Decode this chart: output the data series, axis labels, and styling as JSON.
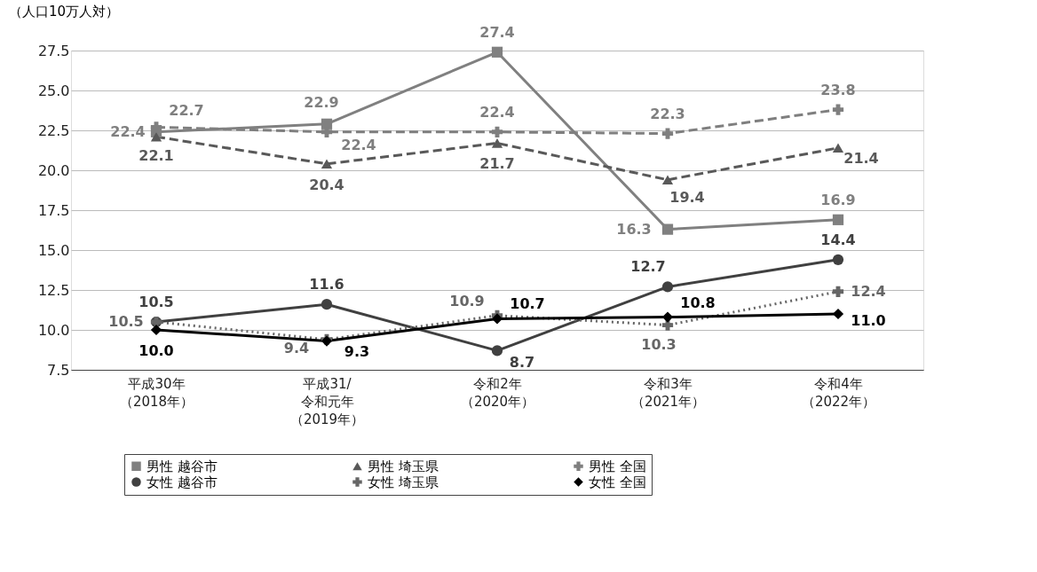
{
  "chart_data": {
    "type": "line",
    "ylabel": "（人口10万人対）",
    "categories": [
      "平成30年（2018年）",
      "平成31/令和元年（2019年）",
      "令和2年（2020年）",
      "令和3年（2021年）",
      "令和4年（2022年）"
    ],
    "series": [
      {
        "name": "男性 越谷市",
        "color": "#808080",
        "marker": "square",
        "line_style": "solid",
        "values": [
          22.4,
          22.9,
          27.4,
          16.3,
          16.9
        ]
      },
      {
        "name": "男性 埼玉県",
        "color": "#595959",
        "marker": "triangle",
        "line_style": "dashed",
        "values": [
          22.1,
          20.4,
          21.7,
          19.4,
          21.4
        ]
      },
      {
        "name": "男性 全国",
        "color": "#7f7f7f",
        "marker": "cross",
        "line_style": "dashed",
        "values": [
          22.7,
          22.4,
          22.4,
          22.3,
          23.8
        ]
      },
      {
        "name": "女性 越谷市",
        "color": "#404040",
        "marker": "circle",
        "line_style": "solid",
        "values": [
          10.5,
          11.6,
          8.7,
          12.7,
          14.4
        ]
      },
      {
        "name": "女性 埼玉県",
        "color": "#666666",
        "marker": "cross",
        "line_style": "dotted",
        "values": [
          10.5,
          9.4,
          10.9,
          10.3,
          12.4
        ]
      },
      {
        "name": "女性 全国",
        "color": "#000000",
        "marker": "diamond",
        "line_style": "solid",
        "values": [
          10.0,
          9.3,
          10.7,
          10.8,
          11.0
        ],
        "value_labels": [
          "10.0",
          "9.3",
          "10.7",
          "10.8",
          "11.0"
        ]
      }
    ],
    "ylim": [
      7.5,
      27.5
    ],
    "yticks": [
      {
        "value": 7.5,
        "label": "7.5"
      },
      {
        "value": 10,
        "label": "10.0"
      },
      {
        "value": 12.5,
        "label": "12.5"
      },
      {
        "value": 15,
        "label": "15.0"
      },
      {
        "value": 17.5,
        "label": "17.5"
      },
      {
        "value": 20,
        "label": "20.0"
      },
      {
        "value": 22.5,
        "label": "22.5"
      },
      {
        "value": 25,
        "label": "25.0"
      },
      {
        "value": 27.5,
        "label": "27.5"
      }
    ],
    "grid": "y",
    "legend": "bottom",
    "data_labels": true
  }
}
